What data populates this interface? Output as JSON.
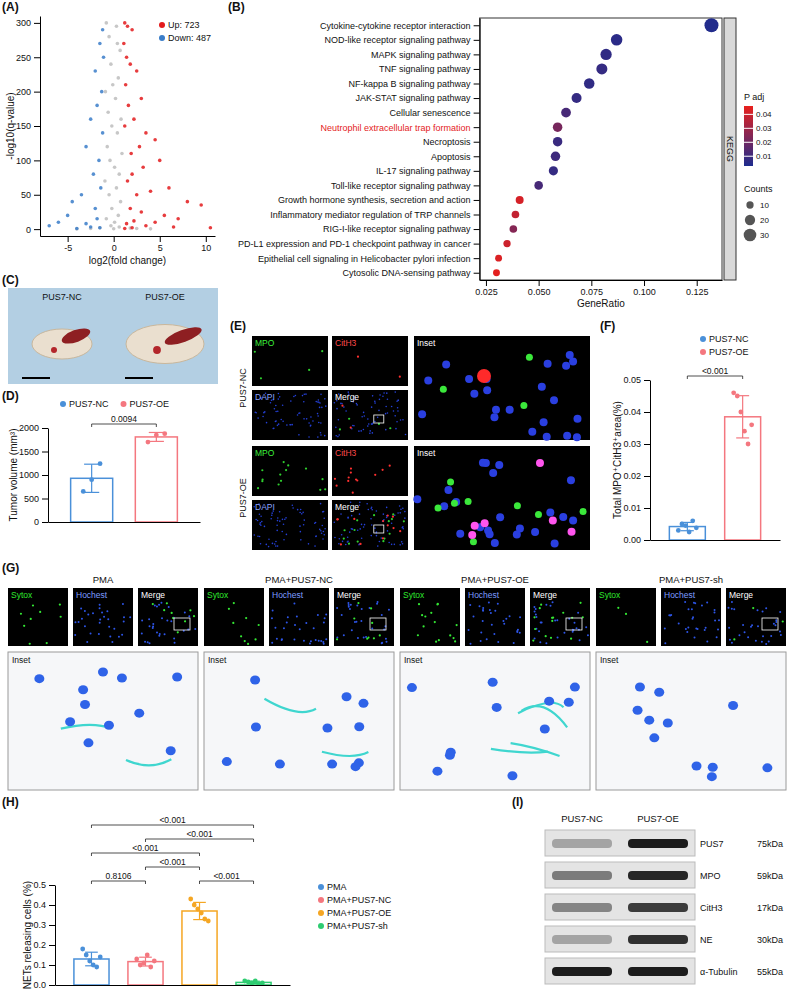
{
  "chart_data": [
    {
      "type": "scatter",
      "panel_label": "(A)",
      "xlabel": "log2(fold change)",
      "ylabel": "-log10(q-value)",
      "xlim": [
        -8,
        11
      ],
      "ylim": [
        -10,
        310
      ],
      "xticks": [
        -5,
        0,
        5,
        10
      ],
      "yticks": [
        0,
        50,
        100,
        150,
        200,
        250,
        300
      ],
      "legend": "upper right",
      "series": [
        {
          "color": "#bdbdbd",
          "x": [
            -0.8,
            -0.5,
            0.3,
            0.7,
            -0.3,
            0.5,
            -0.9,
            0.2,
            -0.6,
            0.8,
            -0.2,
            0.4,
            -0.7,
            0.9,
            -0.4,
            0.1,
            0.6,
            -0.95,
            0.3,
            -0.5,
            0.75,
            -0.2,
            0.5,
            -0.8,
            0.1,
            -0.3,
            0.6,
            -1.5,
            1.8,
            2.5,
            -2.5,
            0,
            -4,
            4,
            0.4,
            -0.1
          ],
          "values": [
            300,
            280,
            295,
            260,
            240,
            220,
            200,
            190,
            170,
            160,
            150,
            140,
            120,
            110,
            100,
            90,
            80,
            70,
            60,
            50,
            40,
            30,
            20,
            15,
            10,
            5,
            3,
            2,
            1.5,
            1,
            1,
            0.5,
            0.3,
            0.4,
            270,
            210
          ]
        },
        {
          "name": "Up: 723",
          "color": "#e31a1c",
          "x": [
            1.2,
            1.5,
            2,
            1.1,
            1.4,
            1.8,
            2.5,
            1.3,
            3,
            1.6,
            2.2,
            1.2,
            3.5,
            4.5,
            2.8,
            1.9,
            5,
            3.2,
            2,
            1.5,
            6,
            4,
            2.5,
            8,
            9.5,
            1.8,
            3,
            5.5,
            7,
            2.2,
            4.5,
            1.4,
            3.5,
            6.5,
            10.5,
            2,
            1.2
          ],
          "values": [
            300,
            295,
            290,
            270,
            250,
            240,
            230,
            210,
            190,
            180,
            160,
            150,
            140,
            130,
            120,
            110,
            100,
            90,
            80,
            70,
            60,
            55,
            50,
            40,
            35,
            30,
            25,
            20,
            15,
            12,
            10,
            8,
            5,
            3,
            2,
            2,
            1
          ]
        },
        {
          "name": "Down: 487",
          "color": "#3a7dc9",
          "x": [
            -1.2,
            -1.5,
            -1.1,
            -2,
            -1.3,
            -1.8,
            -2.5,
            -1.2,
            -3,
            -1.6,
            -2.2,
            -1.4,
            -3.5,
            -4.5,
            -2,
            -5,
            -1.8,
            -6,
            -3,
            -7,
            -2.5,
            -1.5,
            -4
          ],
          "values": [
            290,
            270,
            250,
            230,
            200,
            180,
            160,
            140,
            120,
            100,
            80,
            60,
            50,
            40,
            30,
            20,
            15,
            10,
            8,
            5,
            3,
            2,
            1
          ]
        }
      ]
    },
    {
      "type": "dot",
      "panel_label": "(B)",
      "xlabel": "GeneRatio",
      "facet": "KEGG",
      "legend": "right",
      "categories": [
        "Cytokine-cytokine receptor interaction",
        "NOD-like receptor signaling pathway",
        "MAPK signaling pathway",
        "TNF signaling pathway",
        "NF-kappa B signaling pathway",
        "JAK-STAT signaling pathway",
        "Cellular senescence",
        "Neutrophil extracellular trap formation",
        "Necroptosis",
        "Apoptosis",
        "IL-17 signaling pathway",
        "Toll-like receptor signaling pathway",
        "Growth hormone synthesis, secretion and action",
        "Inflammatory mediator regulation of TRP channels",
        "RIG-I-like receptor signaling pathway",
        "PD-L1 expression and PD-1 checkpoint pathway in cancer",
        "Epithelial cell signaling in Helicobacter pylori infection",
        "Cytosolic DNA-sensing pathway"
      ],
      "values": [
        0.132,
        0.087,
        0.082,
        0.08,
        0.074,
        0.068,
        0.063,
        0.059,
        0.059,
        0.058,
        0.057,
        0.05,
        0.041,
        0.039,
        0.038,
        0.035,
        0.031,
        0.03
      ],
      "sizes": [
        37,
        25,
        24,
        23,
        21,
        19,
        18,
        17,
        17,
        17,
        16,
        14,
        12,
        11,
        11,
        10,
        9,
        9
      ],
      "p_adj": [
        0.004,
        0.006,
        0.007,
        0.008,
        0.007,
        0.008,
        0.012,
        0.022,
        0.009,
        0.01,
        0.008,
        0.012,
        0.042,
        0.038,
        0.025,
        0.04,
        0.043,
        0.045
      ],
      "xlim": [
        0.022,
        0.137
      ],
      "xticks": [
        {
          "value": 0.025,
          "label": "0.025"
        },
        {
          "value": 0.05,
          "label": "0.050"
        },
        {
          "value": 0.075,
          "label": "0.075"
        },
        {
          "value": 0.1,
          "label": "0.100"
        },
        {
          "value": 0.125,
          "label": "0.125"
        }
      ],
      "colorbar": {
        "title": "P adj",
        "lim": [
          0.003,
          0.046
        ],
        "ticks": [
          0.01,
          0.02,
          0.03,
          0.04
        ]
      },
      "size_legend": {
        "title": "Counts",
        "values": [
          10,
          20,
          30
        ]
      }
    },
    {
      "type": "bar",
      "panel_label": "(D)",
      "ylabel": "Tumor volume (mm³)",
      "categories": [
        "PUS7-NC",
        "PUS7-OE"
      ],
      "colors": [
        "#4a90d9",
        "#f4777f"
      ],
      "values": [
        930,
        1810
      ],
      "errors": [
        300,
        95
      ],
      "points": [
        [
          650,
          900,
          1240
        ],
        [
          1700,
          1850,
          1880
        ]
      ],
      "ylim": [
        0,
        2000
      ],
      "yticks": [
        0,
        500,
        1000,
        1500,
        2000
      ],
      "tick_labels": "y",
      "legend": "top",
      "comparisons": [
        {
          "groups": [
            "PUS7-NC",
            "PUS7-OE"
          ],
          "label": "0.0094"
        }
      ]
    },
    {
      "type": "bar",
      "panel_label": "(F)",
      "ylabel": "Total MPO⁺CitH3⁺area(%)",
      "categories": [
        "PUS7-NC",
        "PUS7-OE"
      ],
      "colors": [
        "#4a90d9",
        "#f4777f"
      ],
      "values": [
        0.0042,
        0.0385
      ],
      "errors": [
        0.0013,
        0.0066
      ],
      "points": [
        [
          0.003,
          0.005,
          0.0045,
          0.0025,
          0.006,
          0.0038
        ],
        [
          0.046,
          0.045,
          0.04,
          0.034,
          0.03,
          0.036
        ]
      ],
      "ylim": [
        0,
        0.05
      ],
      "yticks": [
        {
          "value": 0,
          "label": "0.00"
        },
        0.01,
        0.02,
        0.03,
        0.04,
        0.05
      ],
      "tick_labels": "y",
      "legend": "upper right",
      "comparisons": [
        {
          "groups": [
            "PUS7-NC",
            "PUS7-OE"
          ],
          "label": "<0.001"
        }
      ]
    },
    {
      "type": "bar",
      "panel_label": "(H)",
      "ylabel": "NETs releasing cells (%)",
      "categories": [
        "PMA",
        "PMA+PUS7-NC",
        "PMA+PUS7-OE",
        "PMA+PUS7-sh"
      ],
      "colors": [
        "#4a90d9",
        "#f4777f",
        "#f5a623",
        "#2ecc71"
      ],
      "values": [
        0.13,
        0.117,
        0.37,
        0.013
      ],
      "errors": [
        0.034,
        0.022,
        0.043,
        0.006
      ],
      "points": [
        [
          0.18,
          0.15,
          0.12,
          0.1,
          0.09,
          0.14
        ],
        [
          0.13,
          0.1,
          0.11,
          0.15,
          0.09,
          0.12
        ],
        [
          0.43,
          0.4,
          0.38,
          0.36,
          0.33,
          0.32
        ],
        [
          0.02,
          0.015,
          0.01,
          0.02,
          0.005,
          0.01
        ]
      ],
      "ylim": [
        0,
        0.5
      ],
      "yticks": [
        {
          "value": 0,
          "label": "0.0"
        },
        0.1,
        0.2,
        0.3,
        0.4,
        0.5
      ],
      "tick_labels": "y",
      "legend": "right",
      "comparisons": [
        {
          "groups": [
            "PMA",
            "PMA+PUS7-sh"
          ],
          "label": "<0.001"
        },
        {
          "groups": [
            "PMA+PUS7-NC",
            "PMA+PUS7-sh"
          ],
          "label": "<0.001"
        },
        {
          "groups": [
            "PMA",
            "PMA+PUS7-OE"
          ],
          "label": "<0.001"
        },
        {
          "groups": [
            "PMA+PUS7-NC",
            "PMA+PUS7-OE"
          ],
          "label": "<0.001"
        },
        {
          "groups": [
            "PMA",
            "PMA+PUS7-NC"
          ],
          "label": "0.8106"
        },
        {
          "groups": [
            "PMA+PUS7-OE",
            "PMA+PUS7-sh"
          ],
          "label": "<0.001"
        }
      ]
    }
  ],
  "images": {
    "C": {
      "panel_label": "(C)",
      "labels": [
        "PUS7-NC",
        "PUS7-OE"
      ]
    },
    "E": {
      "panel_label": "(E)",
      "rows": [
        "PUS7-NC",
        "PUS7-OE"
      ],
      "channels": [
        "MPO",
        "CitH3",
        "DAPI",
        "Merge"
      ],
      "inset": "Inset"
    },
    "G": {
      "panel_label": "(G)",
      "groups": [
        "PMA",
        "PMA+PUS7-NC",
        "PMA+PUS7-OE",
        "PMA+PUS7-sh"
      ],
      "channels": [
        "Sytox",
        "Hochest",
        "Merge"
      ],
      "inset": "Inset"
    }
  },
  "blot": {
    "panel_label": "(I)",
    "columns": [
      "PUS7-NC",
      "PUS7-OE"
    ],
    "rows": [
      {
        "protein": "PUS7",
        "size": "75kDa"
      },
      {
        "protein": "MPO",
        "size": "59kDa"
      },
      {
        "protein": "CitH3",
        "size": "17kDa"
      },
      {
        "protein": "NE",
        "size": "30kDa"
      },
      {
        "protein": "α-Tubulin",
        "size": "55kDa"
      }
    ]
  }
}
